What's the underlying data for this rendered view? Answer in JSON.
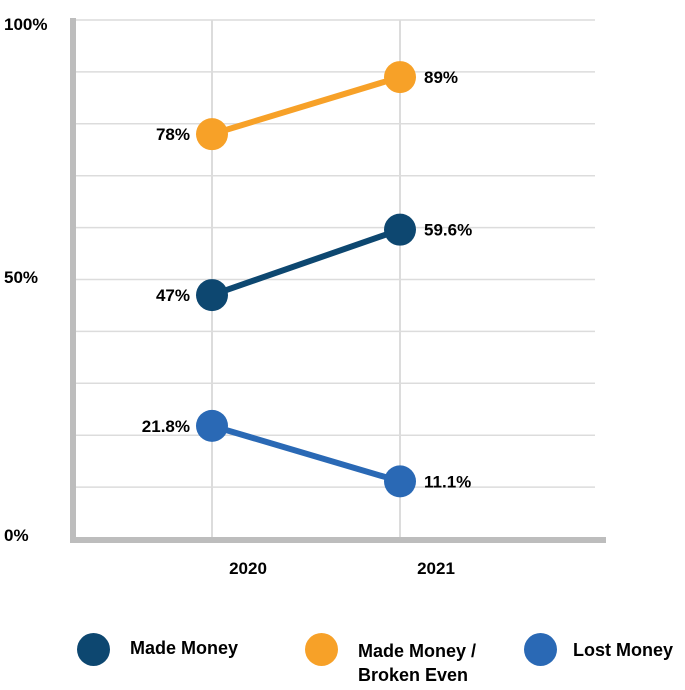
{
  "chart_data": {
    "type": "line",
    "categories": [
      "2020",
      "2021"
    ],
    "ylim": [
      0,
      100
    ],
    "yticks": [
      {
        "value": 0,
        "label": "0%"
      },
      {
        "value": 50,
        "label": "50%"
      },
      {
        "value": 100,
        "label": "100%"
      }
    ],
    "grid": true,
    "legend_position": "bottom",
    "series": [
      {
        "name": "Made Money",
        "color": "#0d4770",
        "values": [
          47,
          59.6
        ],
        "labels": [
          "47%",
          "59.6%"
        ]
      },
      {
        "name": "Made Money / Broken Even",
        "color": "#f7a128",
        "values": [
          78,
          89
        ],
        "labels": [
          "78%",
          "89%"
        ]
      },
      {
        "name": "Lost Money",
        "color": "#2a69b5",
        "values": [
          21.8,
          11.1
        ],
        "labels": [
          "21.8%",
          "11.1%"
        ]
      }
    ]
  },
  "legend": [
    {
      "label": "Made Money",
      "color": "#0d4770"
    },
    {
      "label": "Made Money /\nBroken Even",
      "color": "#f7a128"
    },
    {
      "label": "Lost Money",
      "color": "#2a69b5"
    }
  ]
}
